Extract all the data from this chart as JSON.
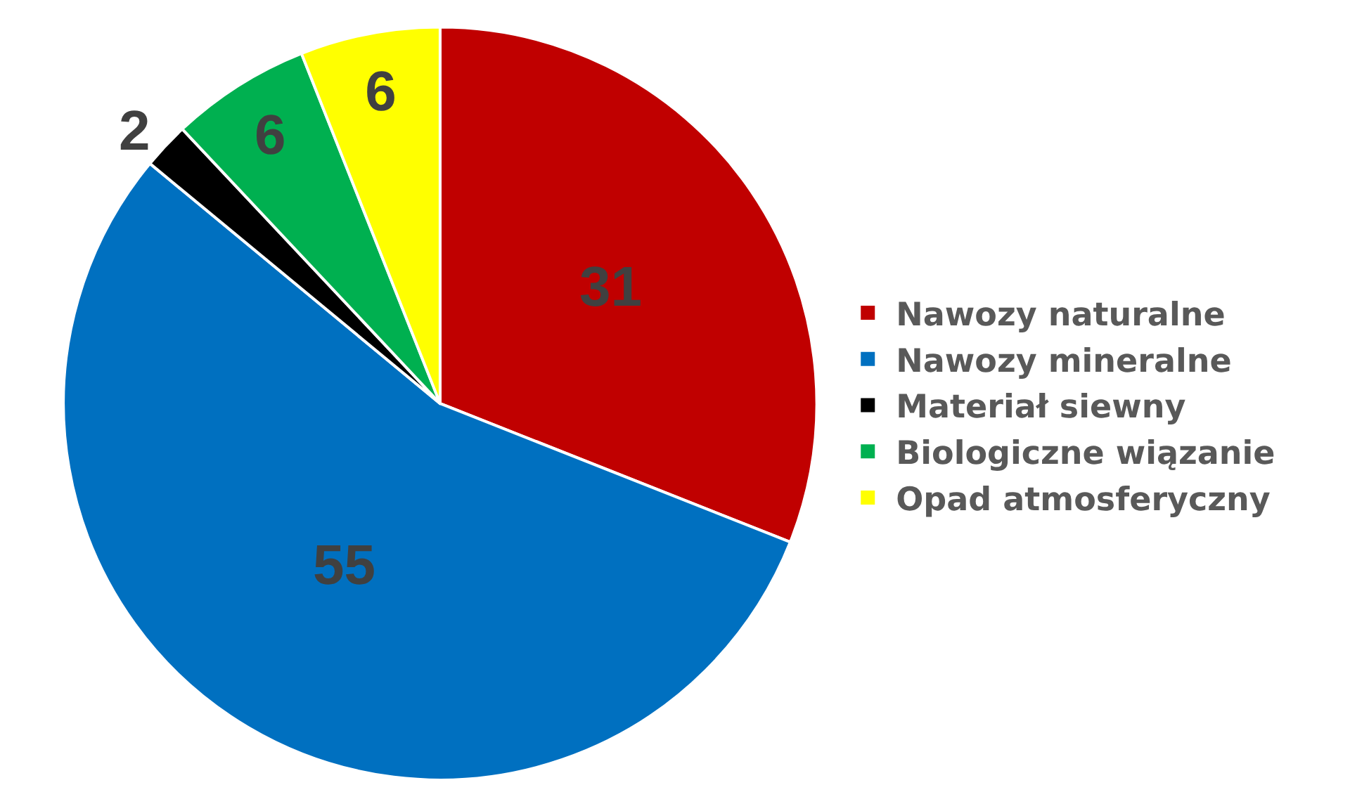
{
  "chart_data": {
    "type": "pie",
    "categories": [
      "Nawozy naturalne",
      "Nawozy mineralne",
      "Materiał siewny",
      "Biologiczne wiązanie",
      "Opad atmosferyczny"
    ],
    "values": [
      31,
      55,
      2,
      6,
      6
    ],
    "colors": [
      "#c00000",
      "#0070c0",
      "#000000",
      "#00b050",
      "#ffff00"
    ],
    "data_labels": true,
    "legend": "right"
  }
}
